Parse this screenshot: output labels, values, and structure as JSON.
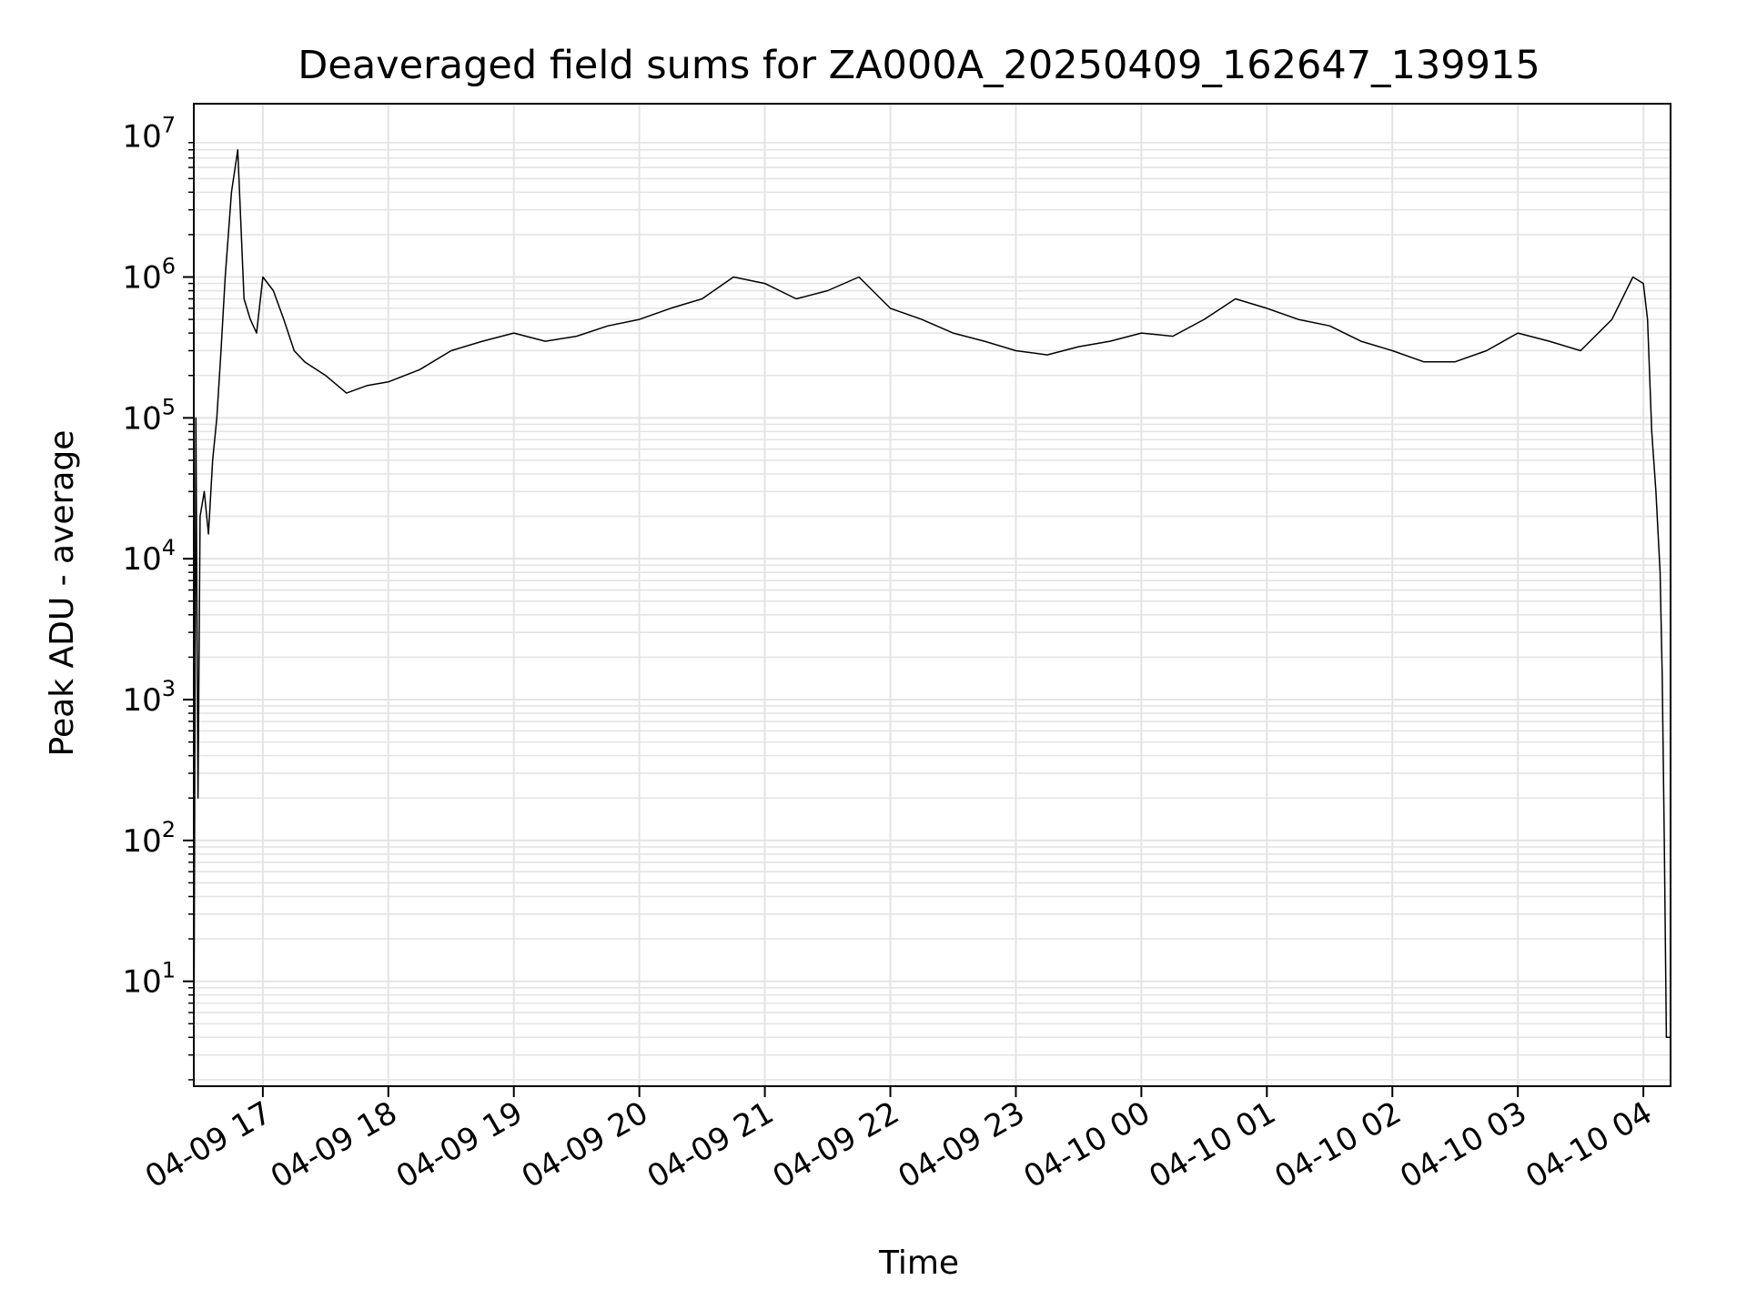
{
  "chart_data": {
    "type": "line",
    "title": "Deaveraged field sums for ZA000A_20250409_162647_139915",
    "xlabel": "Time",
    "ylabel": "Peak ADU - average",
    "yscale": "log",
    "ylim": [
      1.8,
      17000000
    ],
    "xlim": [
      "2025-04-09 16:27",
      "2025-04-10 04:13"
    ],
    "grid": true,
    "line_color": "#000000",
    "grid_color": "#e4e4e4",
    "x_ticks": [
      {
        "value": "2025-04-09 17:00",
        "label": "04-09 17"
      },
      {
        "value": "2025-04-09 18:00",
        "label": "04-09 18"
      },
      {
        "value": "2025-04-09 19:00",
        "label": "04-09 19"
      },
      {
        "value": "2025-04-09 20:00",
        "label": "04-09 20"
      },
      {
        "value": "2025-04-09 21:00",
        "label": "04-09 21"
      },
      {
        "value": "2025-04-09 22:00",
        "label": "04-09 22"
      },
      {
        "value": "2025-04-09 23:00",
        "label": "04-09 23"
      },
      {
        "value": "2025-04-10 00:00",
        "label": "04-10 00"
      },
      {
        "value": "2025-04-10 01:00",
        "label": "04-10 01"
      },
      {
        "value": "2025-04-10 02:00",
        "label": "04-10 02"
      },
      {
        "value": "2025-04-10 03:00",
        "label": "04-10 03"
      },
      {
        "value": "2025-04-10 04:00",
        "label": "04-10 04"
      }
    ],
    "y_ticks": [
      {
        "value": 10,
        "base": "10",
        "exp": "1"
      },
      {
        "value": 100,
        "base": "10",
        "exp": "2"
      },
      {
        "value": 1000,
        "base": "10",
        "exp": "3"
      },
      {
        "value": 10000,
        "base": "10",
        "exp": "4"
      },
      {
        "value": 100000,
        "base": "10",
        "exp": "5"
      },
      {
        "value": 1000000,
        "base": "10",
        "exp": "6"
      },
      {
        "value": 10000000,
        "base": "10",
        "exp": "7"
      }
    ],
    "series": [
      {
        "x": [
          "2025-04-09 16:27",
          "2025-04-09 16:28",
          "2025-04-09 16:29",
          "2025-04-09 16:30",
          "2025-04-09 16:32",
          "2025-04-09 16:34",
          "2025-04-09 16:36",
          "2025-04-09 16:38",
          "2025-04-09 16:40",
          "2025-04-09 16:42",
          "2025-04-09 16:45",
          "2025-04-09 16:48",
          "2025-04-09 16:51",
          "2025-04-09 16:54",
          "2025-04-09 16:57",
          "2025-04-09 17:00",
          "2025-04-09 17:05",
          "2025-04-09 17:10",
          "2025-04-09 17:15",
          "2025-04-09 17:20",
          "2025-04-09 17:30",
          "2025-04-09 17:40",
          "2025-04-09 17:50",
          "2025-04-09 18:00",
          "2025-04-09 18:15",
          "2025-04-09 18:30",
          "2025-04-09 18:45",
          "2025-04-09 19:00",
          "2025-04-09 19:15",
          "2025-04-09 19:30",
          "2025-04-09 19:45",
          "2025-04-09 20:00",
          "2025-04-09 20:15",
          "2025-04-09 20:30",
          "2025-04-09 20:45",
          "2025-04-09 21:00",
          "2025-04-09 21:15",
          "2025-04-09 21:30",
          "2025-04-09 21:45",
          "2025-04-09 22:00",
          "2025-04-09 22:15",
          "2025-04-09 22:30",
          "2025-04-09 22:45",
          "2025-04-09 23:00",
          "2025-04-09 23:15",
          "2025-04-09 23:30",
          "2025-04-09 23:45",
          "2025-04-10 00:00",
          "2025-04-10 00:15",
          "2025-04-10 00:30",
          "2025-04-10 00:45",
          "2025-04-10 01:00",
          "2025-04-10 01:15",
          "2025-04-10 01:30",
          "2025-04-10 01:45",
          "2025-04-10 02:00",
          "2025-04-10 02:15",
          "2025-04-10 02:30",
          "2025-04-10 02:45",
          "2025-04-10 03:00",
          "2025-04-10 03:15",
          "2025-04-10 03:30",
          "2025-04-10 03:45",
          "2025-04-10 03:55",
          "2025-04-10 04:00",
          "2025-04-10 04:02",
          "2025-04-10 04:04",
          "2025-04-10 04:06",
          "2025-04-10 04:08",
          "2025-04-10 04:09",
          "2025-04-10 04:10",
          "2025-04-10 04:11",
          "2025-04-10 04:12",
          "2025-04-10 04:13"
        ],
        "y": [
          2,
          100000,
          200,
          20000,
          30000,
          15000,
          50000,
          100000,
          300000,
          1000000,
          4000000,
          8000000,
          700000,
          500000,
          400000,
          1000000,
          800000,
          500000,
          300000,
          250000,
          200000,
          150000,
          170000,
          180000,
          220000,
          300000,
          350000,
          400000,
          350000,
          380000,
          450000,
          500000,
          600000,
          700000,
          1000000,
          900000,
          700000,
          800000,
          1000000,
          600000,
          500000,
          400000,
          350000,
          300000,
          280000,
          320000,
          350000,
          400000,
          380000,
          500000,
          700000,
          600000,
          500000,
          450000,
          350000,
          300000,
          250000,
          250000,
          300000,
          400000,
          350000,
          300000,
          500000,
          1000000,
          900000,
          500000,
          80000,
          30000,
          8000,
          1500,
          100,
          4,
          4,
          4
        ]
      }
    ]
  }
}
